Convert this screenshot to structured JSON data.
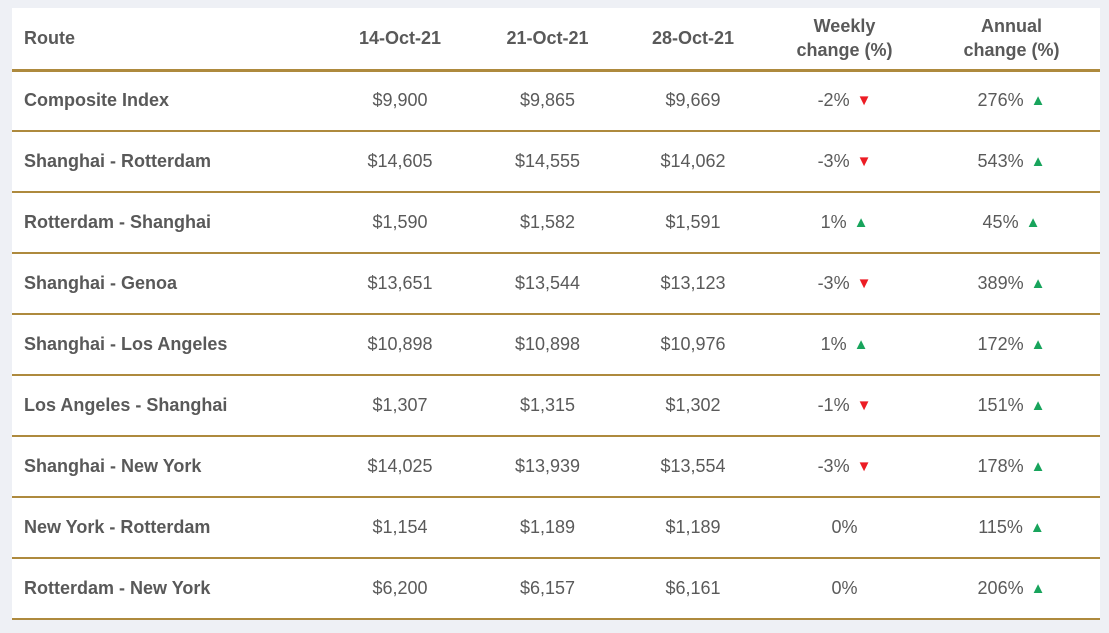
{
  "colors": {
    "page-bg": "#eef0f5",
    "card-bg": "#ffffff",
    "gold": "#ae8a3e",
    "head-text": "#595959",
    "value-text": "#5a5a5a",
    "up": "#18a45c",
    "down": "#ec1c24"
  },
  "icons": {
    "up": {
      "name": "up-triangle-icon",
      "glyph": "▲"
    },
    "down": {
      "name": "down-triangle-icon",
      "glyph": "▼"
    }
  },
  "table": {
    "header": {
      "route": "Route",
      "date1": "14-Oct-21",
      "date2": "21-Oct-21",
      "date3": "28-Oct-21",
      "weekly_line1": "Weekly",
      "weekly_line2": "change (%)",
      "annual_line1": "Annual",
      "annual_line2": "change (%)"
    },
    "rows": [
      {
        "route": "Composite Index",
        "d1": "$9,900",
        "d2": "$9,865",
        "d3": "$9,669",
        "weekly": "-2%",
        "weekly_dir": "down",
        "annual": "276%",
        "annual_dir": "up"
      },
      {
        "route": "Shanghai - Rotterdam",
        "d1": "$14,605",
        "d2": "$14,555",
        "d3": "$14,062",
        "weekly": "-3%",
        "weekly_dir": "down",
        "annual": "543%",
        "annual_dir": "up"
      },
      {
        "route": "Rotterdam - Shanghai",
        "d1": "$1,590",
        "d2": "$1,582",
        "d3": "$1,591",
        "weekly": "1%",
        "weekly_dir": "up",
        "annual": "45%",
        "annual_dir": "up"
      },
      {
        "route": "Shanghai - Genoa",
        "d1": "$13,651",
        "d2": "$13,544",
        "d3": "$13,123",
        "weekly": "-3%",
        "weekly_dir": "down",
        "annual": "389%",
        "annual_dir": "up"
      },
      {
        "route": "Shanghai - Los Angeles",
        "d1": "$10,898",
        "d2": "$10,898",
        "d3": "$10,976",
        "weekly": "1%",
        "weekly_dir": "up",
        "annual": "172%",
        "annual_dir": "up"
      },
      {
        "route": "Los Angeles - Shanghai",
        "d1": "$1,307",
        "d2": "$1,315",
        "d3": "$1,302",
        "weekly": "-1%",
        "weekly_dir": "down",
        "annual": "151%",
        "annual_dir": "up"
      },
      {
        "route": "Shanghai - New York",
        "d1": "$14,025",
        "d2": "$13,939",
        "d3": "$13,554",
        "weekly": "-3%",
        "weekly_dir": "down",
        "annual": "178%",
        "annual_dir": "up"
      },
      {
        "route": "New York - Rotterdam",
        "d1": "$1,154",
        "d2": "$1,189",
        "d3": "$1,189",
        "weekly": "0%",
        "weekly_dir": "none",
        "annual": "115%",
        "annual_dir": "up"
      },
      {
        "route": "Rotterdam - New York",
        "d1": "$6,200",
        "d2": "$6,157",
        "d3": "$6,161",
        "weekly": "0%",
        "weekly_dir": "none",
        "annual": "206%",
        "annual_dir": "up"
      }
    ]
  }
}
